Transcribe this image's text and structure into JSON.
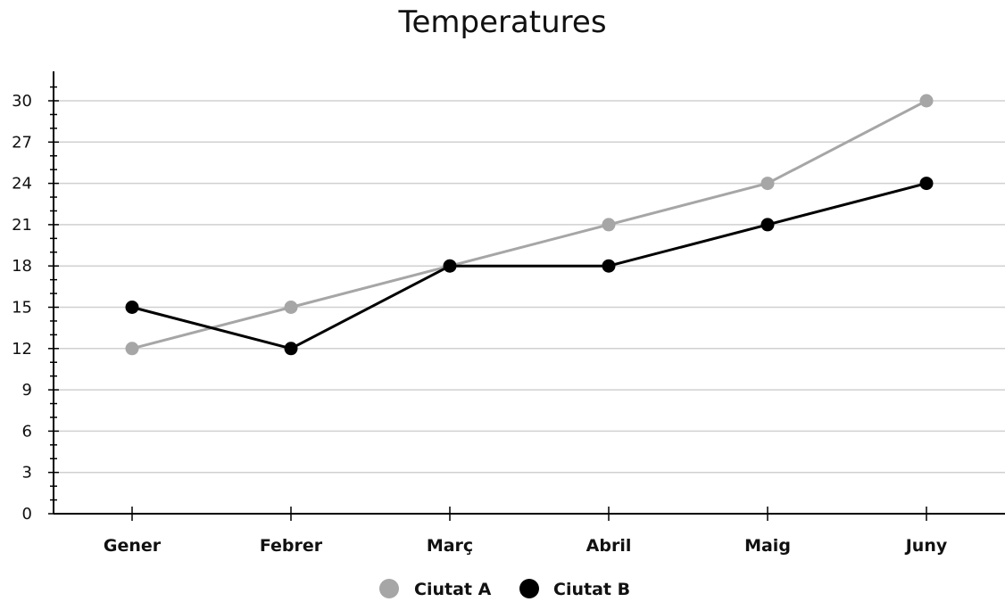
{
  "chart_data": {
    "type": "line",
    "title": "Temperatures",
    "xlabel": "",
    "ylabel": "",
    "categories": [
      "Gener",
      "Febrer",
      "Març",
      "Abril",
      "Maig",
      "Juny"
    ],
    "ylim": [
      0,
      30
    ],
    "yticks": [
      0,
      3,
      6,
      9,
      12,
      15,
      18,
      21,
      24,
      27,
      30
    ],
    "grid": true,
    "legend_position": "bottom",
    "series": [
      {
        "name": "Ciutat A",
        "values": [
          12,
          15,
          18,
          21,
          24,
          30
        ],
        "color": "#a6a6a6"
      },
      {
        "name": "Ciutat B",
        "values": [
          15,
          12,
          18,
          18,
          21,
          24
        ],
        "color": "#000000"
      }
    ]
  }
}
